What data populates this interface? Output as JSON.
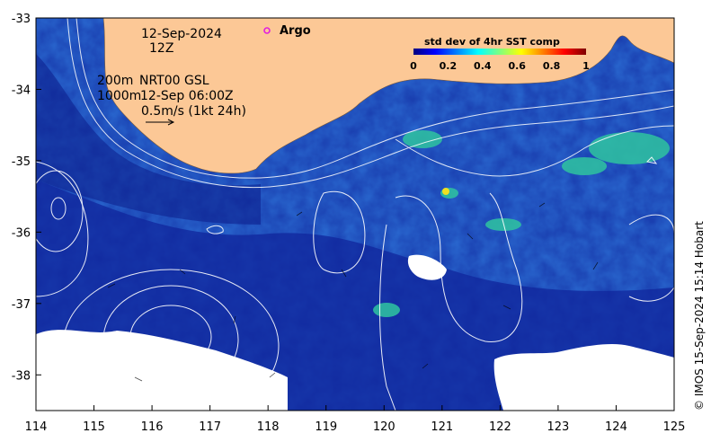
{
  "map": {
    "date": "12-Sep-2024",
    "hour": "12Z",
    "argo_label": "Argo",
    "depth_200": "200m",
    "depth_1000": "1000m",
    "product": "NRT00 GSL",
    "product_time": "12-Sep 06:00Z",
    "vector_scale": "0.5m/s (1kt 24h)",
    "credit": "© IMOS 15-Sep-2024 15:14 Hobart",
    "colors": {
      "land": "#fcc896",
      "ocean_deep": "#10269c",
      "ocean_mid": "#1e54c8",
      "cloud": "#ffffff",
      "argo_marker": "#e020e0"
    }
  },
  "chart_data": {
    "type": "heatmap",
    "title": "std dev of 4hr SST comp",
    "colorbar": {
      "range": [
        0,
        1
      ],
      "ticks": [
        "0",
        "0.2",
        "0.4",
        "0.6",
        "0.8",
        "1"
      ],
      "colormap": "jet"
    },
    "x_axis": {
      "range": [
        114,
        125
      ],
      "ticks": [
        "114",
        "115",
        "116",
        "117",
        "118",
        "119",
        "120",
        "121",
        "122",
        "123",
        "124",
        "125"
      ]
    },
    "y_axis": {
      "range": [
        -38.5,
        -33
      ],
      "ticks": [
        "-33",
        "-34",
        "-35",
        "-36",
        "-37",
        "-38"
      ]
    },
    "argo_position": {
      "lon": 118.0,
      "lat": -33.2
    }
  }
}
